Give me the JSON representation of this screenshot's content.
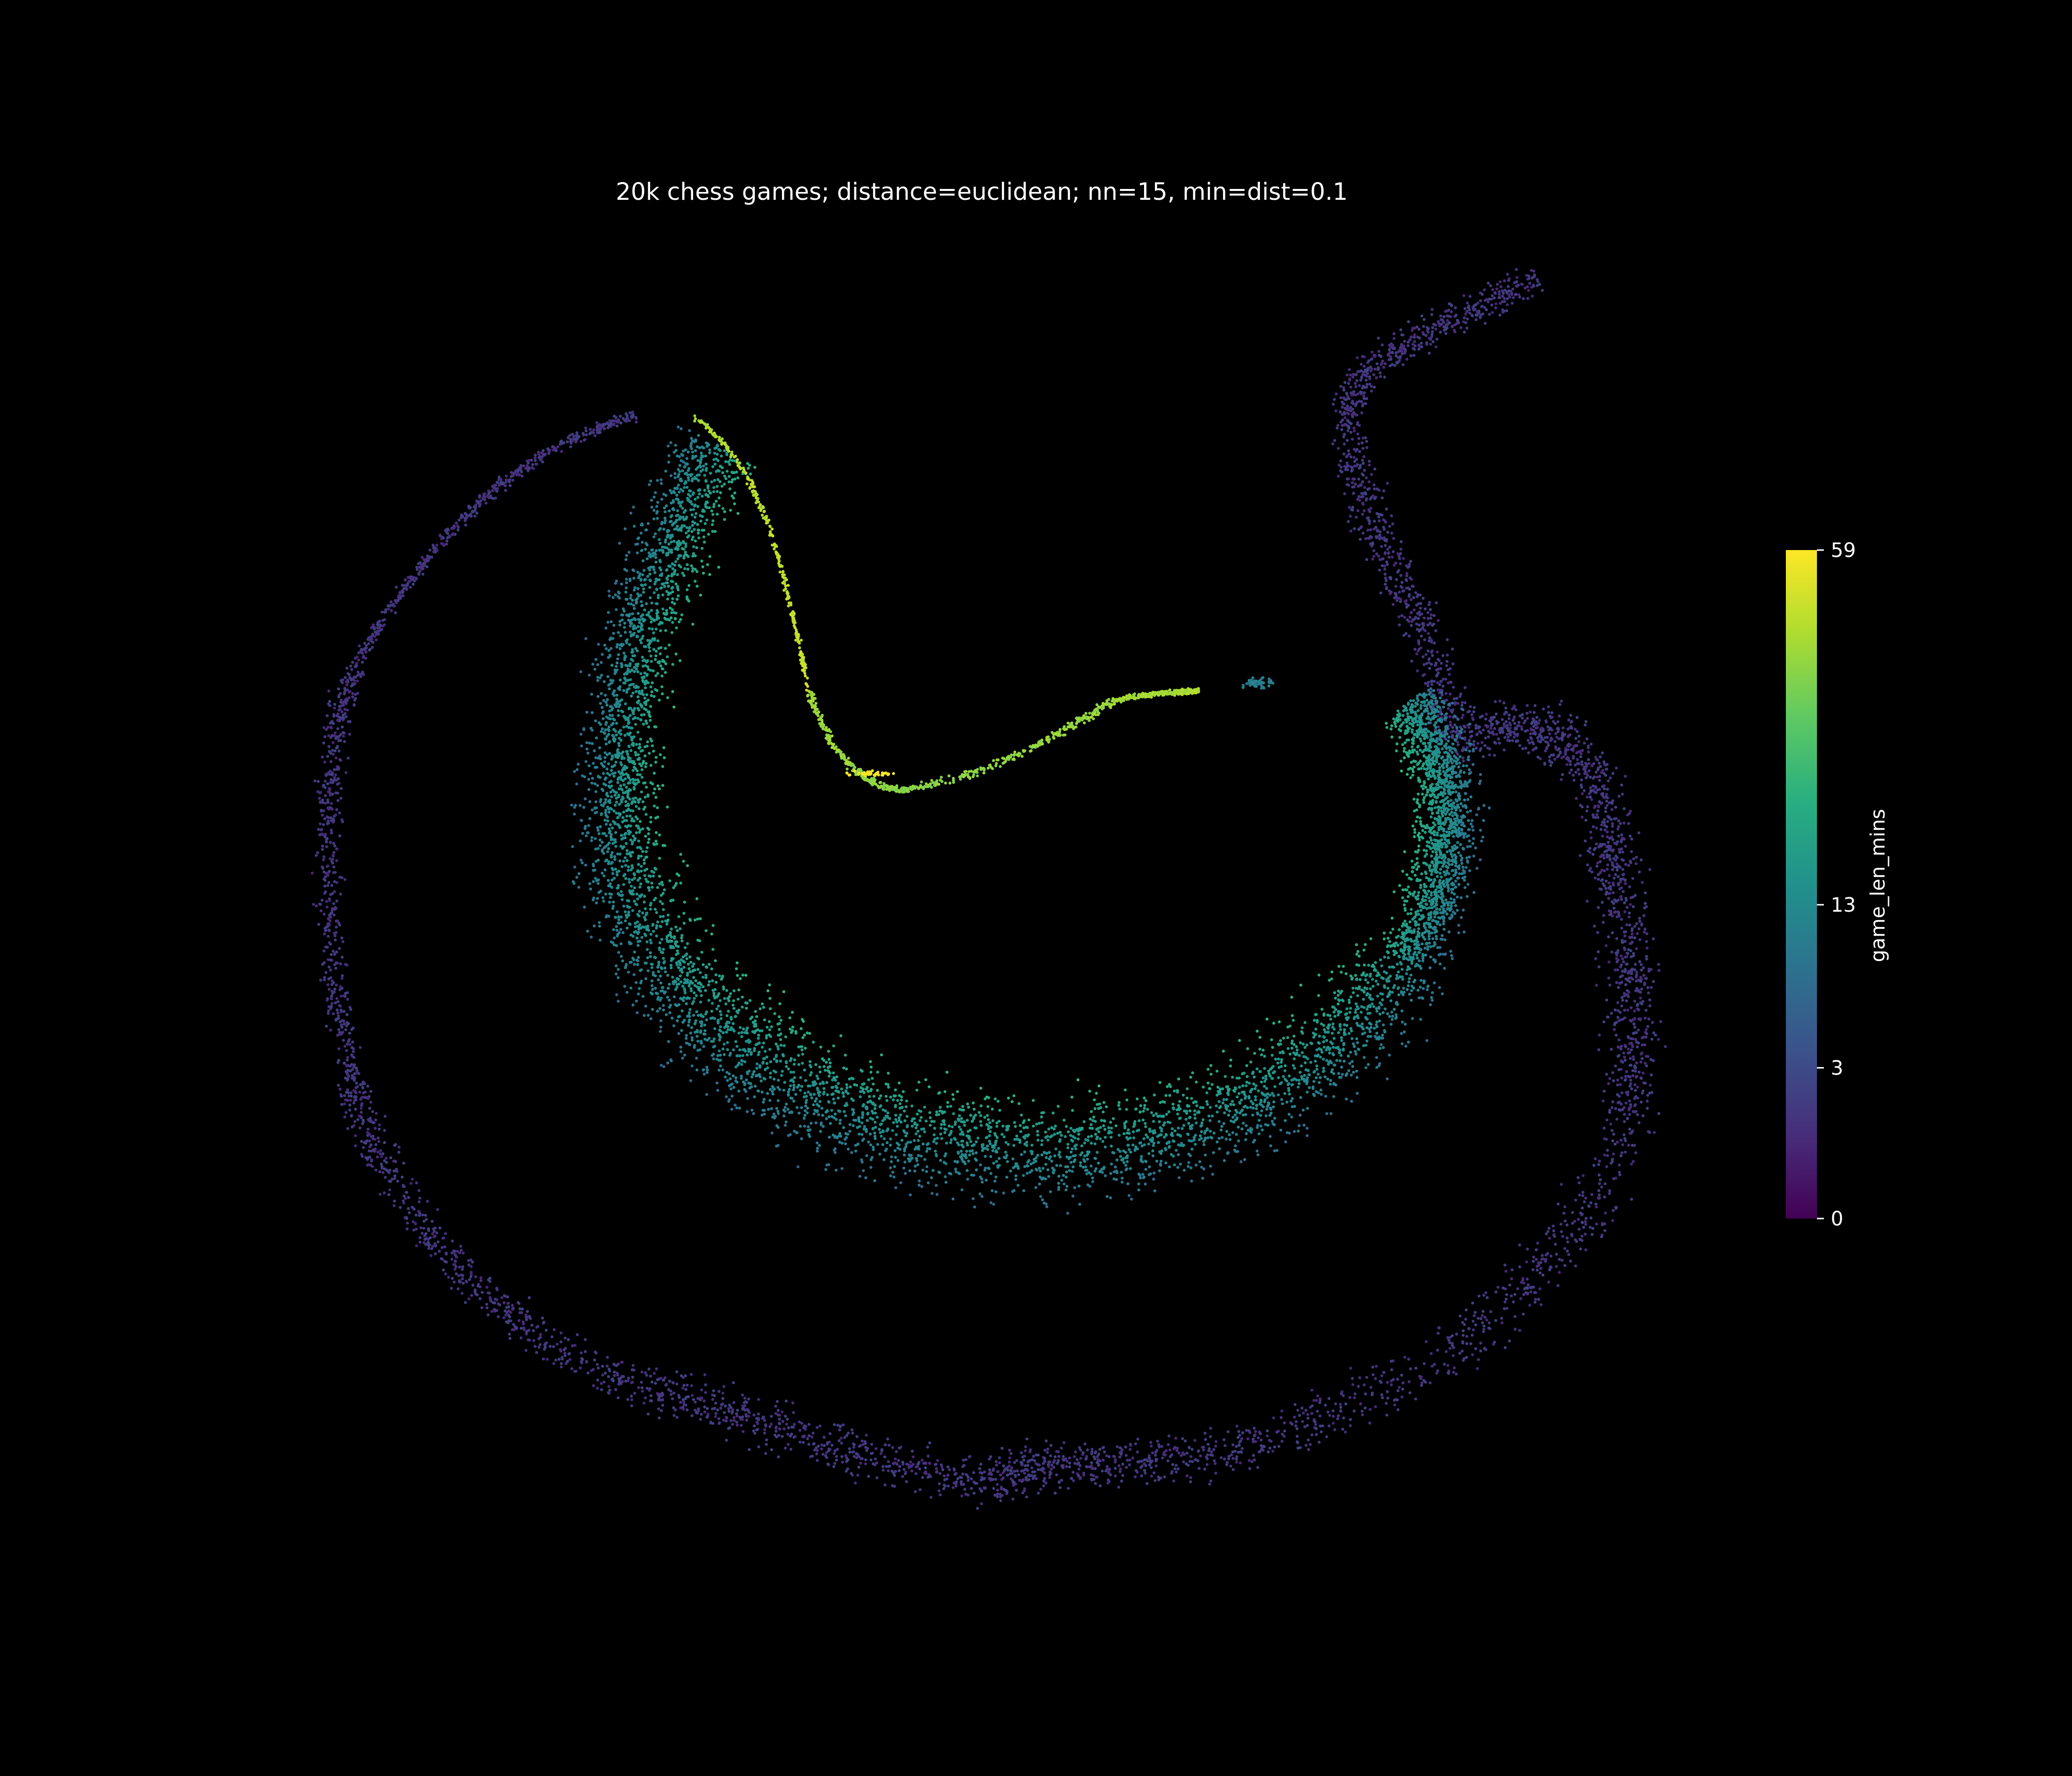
{
  "chart_data": {
    "type": "scatter",
    "title": "20k chess games; distance=euclidean; nn=15, min=dist=0.1",
    "xlabel": "",
    "ylabel": "",
    "axes_visible": false,
    "grid": false,
    "background": "#000000",
    "point_count_approx": 20000,
    "colormap": "viridis",
    "colorbar": {
      "label": "game_len_mins",
      "ticks": [
        0,
        3,
        13,
        59
      ],
      "range": [
        0,
        59
      ],
      "scale": "sqrt"
    },
    "clusters": [
      {
        "name": "outer-ring",
        "shape": "arc",
        "value_range": [
          0,
          3
        ]
      },
      {
        "name": "inner-crescent",
        "shape": "crescent",
        "value_range": [
          5,
          30
        ]
      },
      {
        "name": "bright-ridge",
        "shape": "curve",
        "value_range": [
          35,
          59
        ]
      }
    ]
  },
  "colors": {
    "background": "#000000",
    "text": "#ffffff",
    "viridis_low": "#440154",
    "viridis_mid": "#21918c",
    "viridis_high": "#fde725"
  }
}
